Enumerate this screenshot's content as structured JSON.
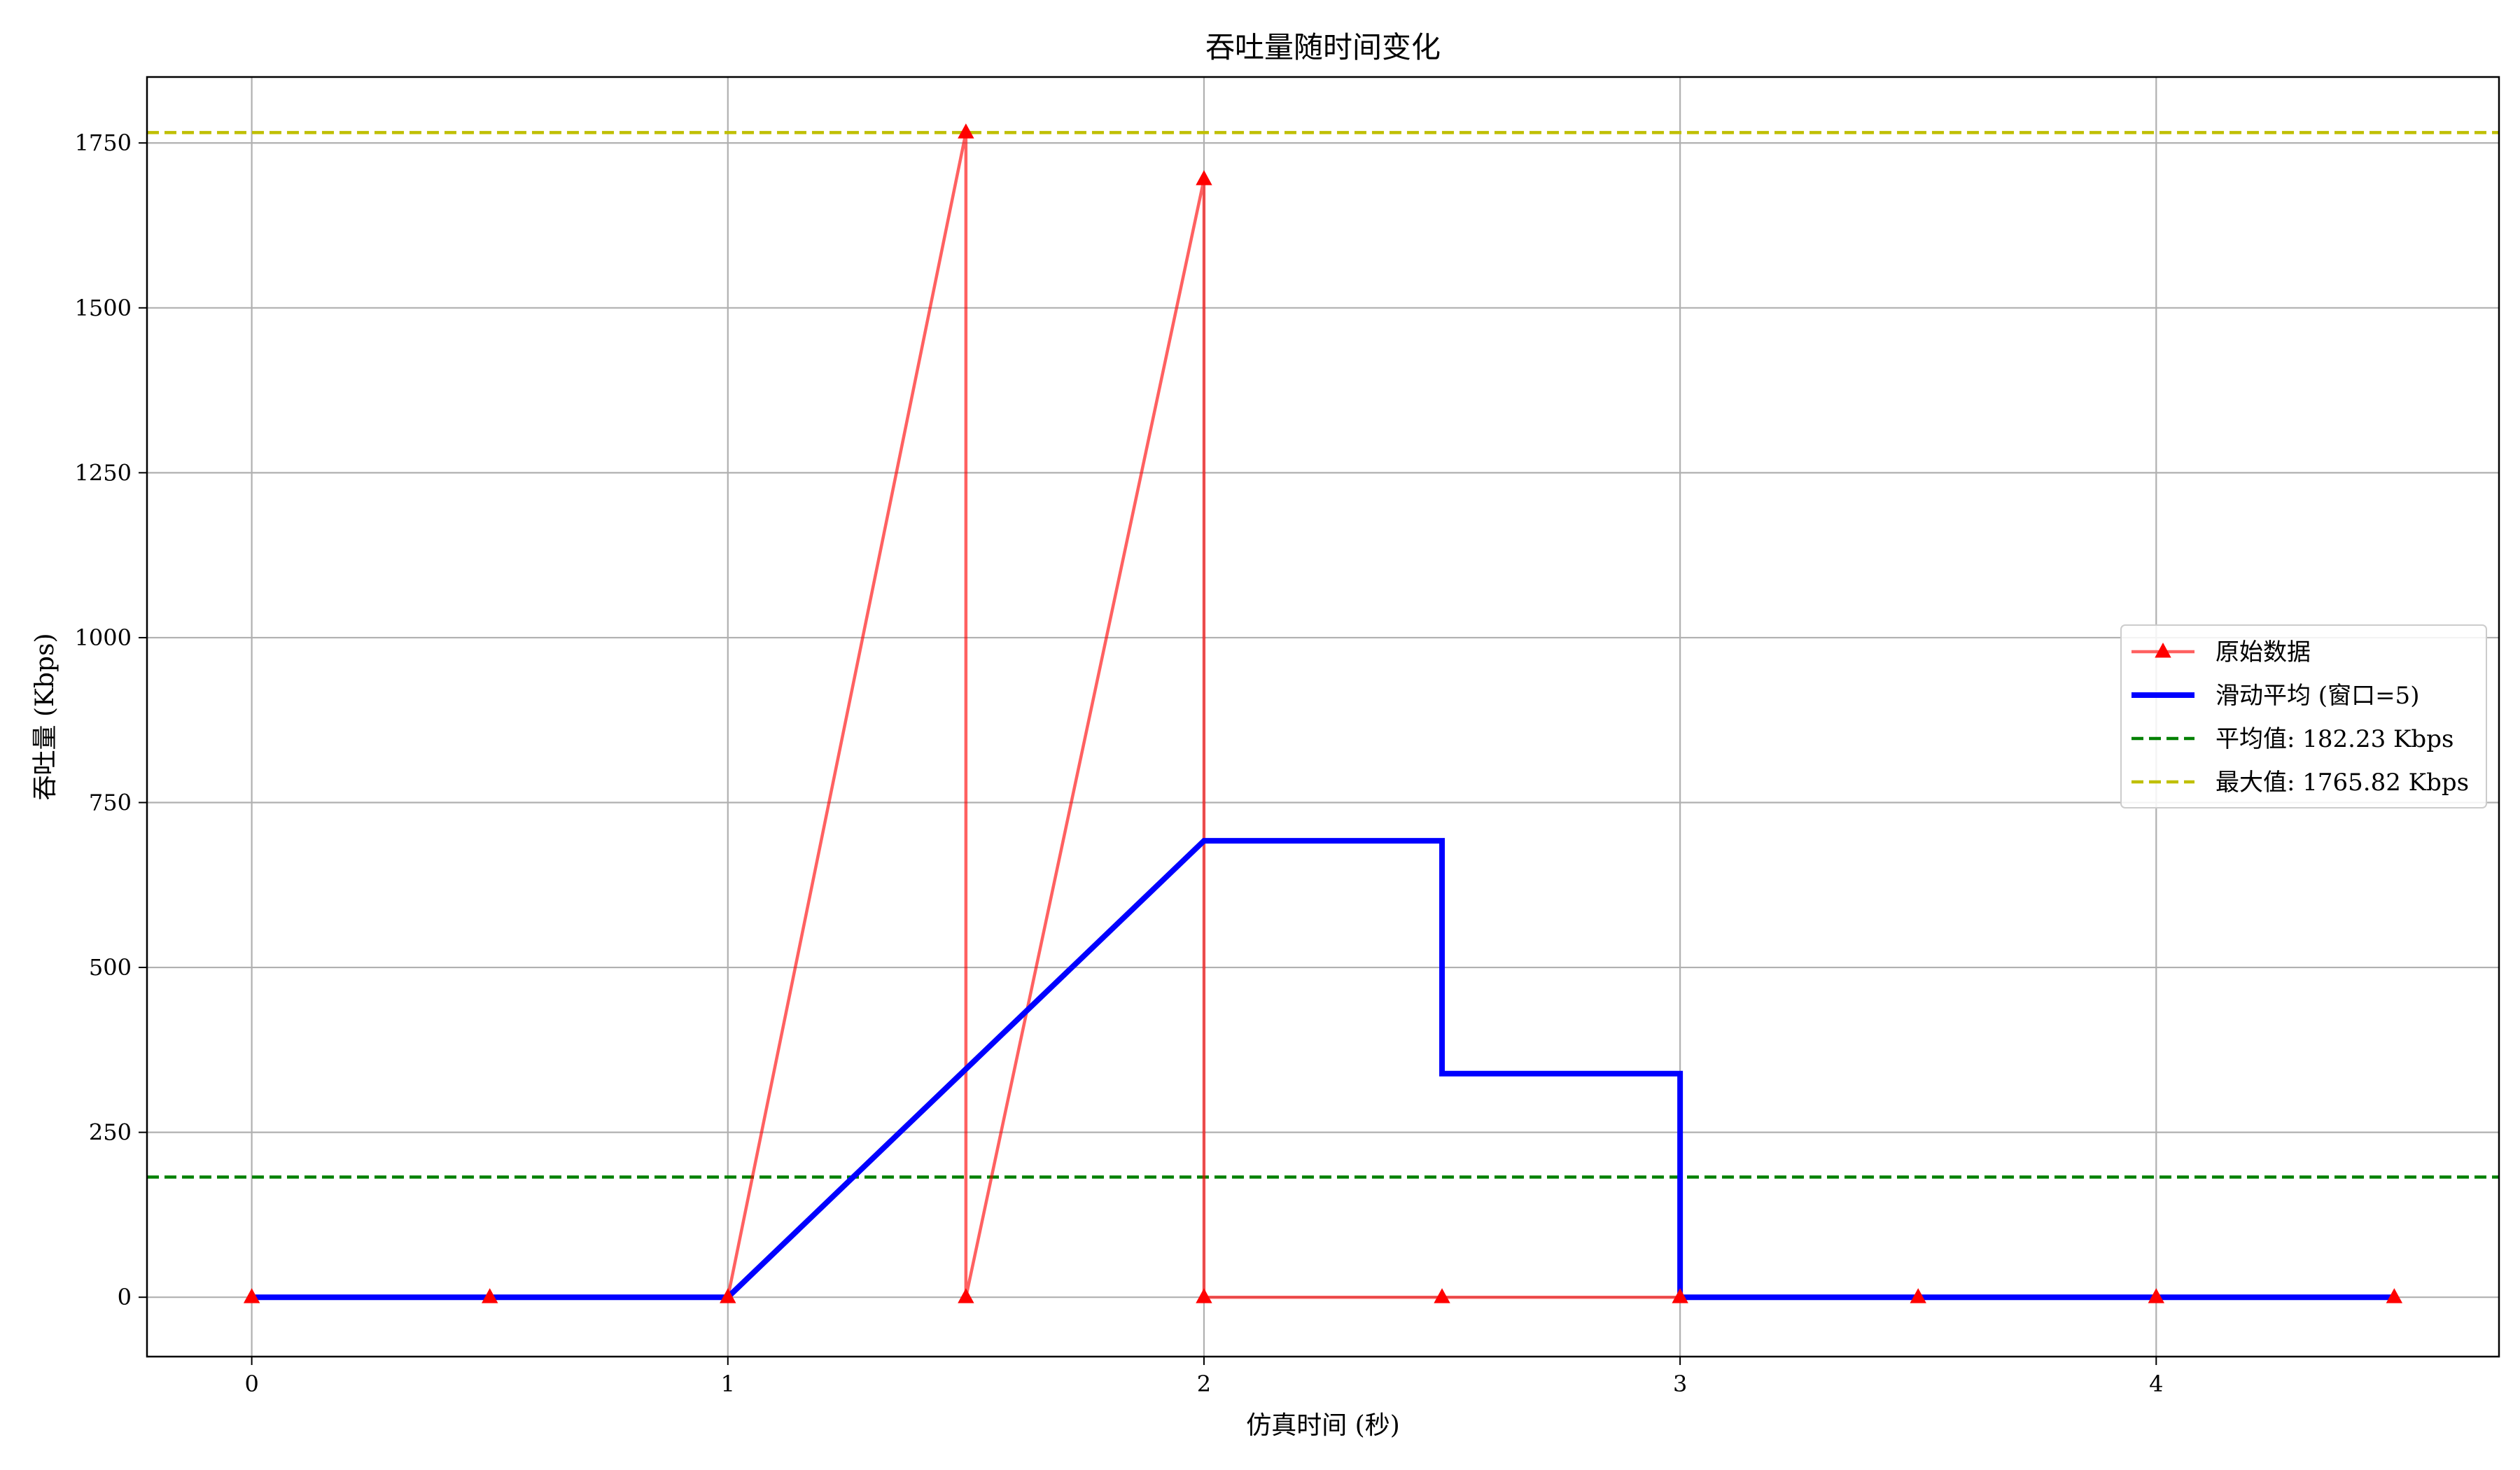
{
  "chart_data": {
    "type": "line",
    "title": "吞吐量随时间变化",
    "xlabel": "仿真时间 (秒)",
    "ylabel": "吞吐量 (Kbps)",
    "xlim": [
      -0.22,
      4.72
    ],
    "ylim": [
      -90,
      1850
    ],
    "xticks": [
      0,
      1,
      2,
      3,
      4
    ],
    "xtick_labels": [
      "0",
      "1",
      "2",
      "3",
      "4"
    ],
    "yticks": [
      0,
      250,
      500,
      750,
      1000,
      1250,
      1500,
      1750
    ],
    "ytick_labels": [
      "0",
      "250",
      "500",
      "750",
      "1000",
      "1250",
      "1500",
      "1750"
    ],
    "grid": true,
    "legend_position": "center-right",
    "series": [
      {
        "name": "原始数据",
        "style": "line-triangle-markers",
        "color": "#ff0000",
        "x": [
          0,
          0.5,
          1.0,
          1.5,
          1.5,
          2.0,
          2.0,
          2.5,
          3.0,
          3.5,
          4.0,
          4.5
        ],
        "y": [
          0,
          0,
          0,
          1765.82,
          0,
          1695,
          0,
          0,
          0,
          0,
          0,
          0
        ]
      },
      {
        "name": "滑动平均 (窗口=5)",
        "style": "step-line",
        "color": "#0000ff",
        "x": [
          0,
          1.0,
          2.0,
          2.5,
          2.5,
          3.0,
          3.0,
          4.5
        ],
        "y": [
          0,
          0,
          692,
          692,
          339,
          339,
          0,
          0
        ]
      }
    ],
    "reference_lines": [
      {
        "name": "平均值: 182.23 Kbps",
        "value": 182.23,
        "color": "#008000"
      },
      {
        "name": "最大值: 1765.82 Kbps",
        "value": 1765.82,
        "color": "#bfbf00"
      }
    ]
  }
}
